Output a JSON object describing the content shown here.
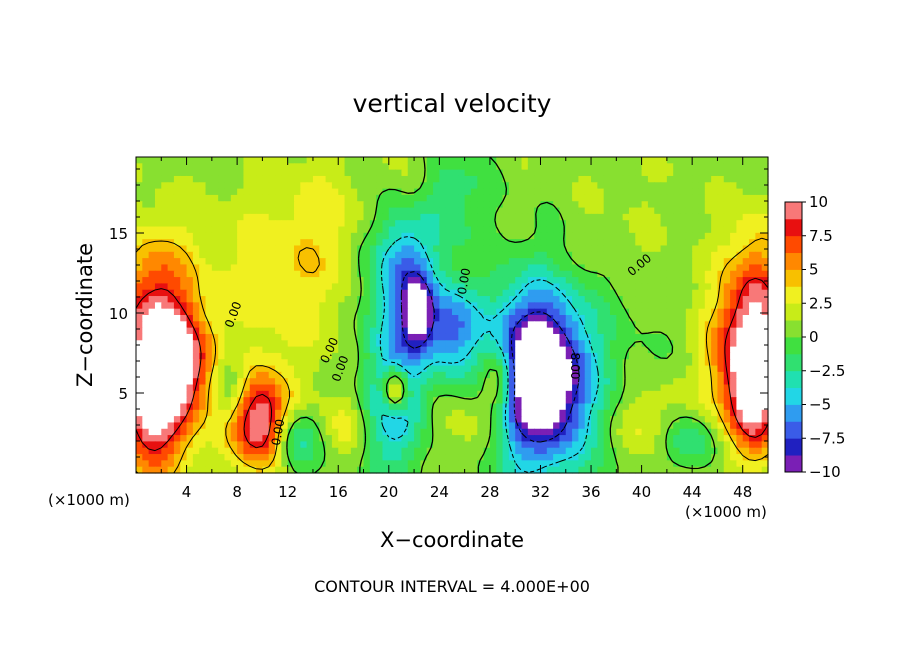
{
  "chart_data": {
    "type": "heatmap",
    "title": "vertical velocity",
    "xlabel": "X−coordinate",
    "ylabel": "Z−coordinate",
    "x_unit": "(×1000 m)",
    "z_unit": "(×1000 m)",
    "footer": "CONTOUR INTERVAL = 4.000E+00",
    "xlim": [
      0,
      50
    ],
    "ylim": [
      0,
      19.75
    ],
    "xticks": [
      4,
      8,
      12,
      16,
      20,
      24,
      28,
      32,
      36,
      40,
      44,
      48
    ],
    "yticks": [
      5,
      10,
      15
    ],
    "colorbar": {
      "ticks": [
        "10",
        "7.5",
        "5",
        "2.5",
        "0",
        "−2.5",
        "−5",
        "−7.5",
        "−10"
      ],
      "vmin": -10,
      "vmax": 10,
      "colors": [
        "#7a1fb5",
        "#2020c0",
        "#3a5ce8",
        "#2f9cf0",
        "#22d6e6",
        "#20e0b0",
        "#30e070",
        "#40e040",
        "#88e030",
        "#c8ec18",
        "#f0f020",
        "#f8c000",
        "#ff8800",
        "#ff4a00",
        "#e81010",
        "#f87878"
      ]
    },
    "contour_labels": [
      "0.00",
      "0.00",
      "0.00",
      "0.00",
      "0.00",
      "0.00",
      "8.00"
    ],
    "features": [
      {
        "x": 1.5,
        "z": 4.5,
        "w": 10.5,
        "sx": 2.2,
        "sz": 3.2
      },
      {
        "x": 1.5,
        "z": 10.0,
        "w": 7.0,
        "sx": 2.2,
        "sz": 3.5
      },
      {
        "x": 4.0,
        "z": 7.0,
        "w": 5.0,
        "sx": 1.6,
        "sz": 2.0
      },
      {
        "x": 9.8,
        "z": 2.8,
        "w": 8.0,
        "sx": 1.6,
        "sz": 2.0
      },
      {
        "x": 9.5,
        "z": 4.5,
        "w": 3.0,
        "sx": 2.0,
        "sz": 2.0
      },
      {
        "x": 7.5,
        "z": 5.5,
        "w": -4.0,
        "sx": 1.0,
        "sz": 1.6
      },
      {
        "x": 12.5,
        "z": 2.0,
        "w": -5.0,
        "sx": 1.2,
        "sz": 1.4
      },
      {
        "x": 11.5,
        "z": 12.0,
        "w": 2.5,
        "sx": 5.0,
        "sz": 4.0
      },
      {
        "x": 20.5,
        "z": 5.0,
        "w": -6.5,
        "sx": 1.8,
        "sz": 3.5
      },
      {
        "x": 20.5,
        "z": 5.2,
        "w": 9.0,
        "sx": 0.7,
        "sz": 1.0
      },
      {
        "x": 21.0,
        "z": 13.0,
        "w": -7.0,
        "sx": 2.2,
        "sz": 3.0
      },
      {
        "x": 22.3,
        "z": 10.0,
        "w": -8.0,
        "sx": 0.8,
        "sz": 1.5
      },
      {
        "x": 24.8,
        "z": 9.0,
        "w": -6.0,
        "sx": 1.5,
        "sz": 1.8
      },
      {
        "x": 22.0,
        "z": 17.5,
        "w": 2.0,
        "sx": 1.0,
        "sz": 2.0
      },
      {
        "x": 28.8,
        "z": 5.8,
        "w": 7.0,
        "sx": 1.1,
        "sz": 1.6
      },
      {
        "x": 31.8,
        "z": 6.0,
        "w": -13.0,
        "sx": 2.4,
        "sz": 3.2
      },
      {
        "x": 32.0,
        "z": 6.0,
        "w": -4.0,
        "sx": 4.5,
        "sz": 6.0
      },
      {
        "x": 26.5,
        "z": 3.0,
        "w": 3.0,
        "sx": 2.5,
        "sz": 2.0
      },
      {
        "x": 40.5,
        "z": 3.0,
        "w": 3.0,
        "sx": 2.0,
        "sz": 1.8
      },
      {
        "x": 43.5,
        "z": 2.0,
        "w": -4.0,
        "sx": 1.5,
        "sz": 1.2
      },
      {
        "x": 49.0,
        "z": 9.0,
        "w": 9.5,
        "sx": 1.8,
        "sz": 4.0
      },
      {
        "x": 49.0,
        "z": 4.5,
        "w": 6.5,
        "sx": 1.5,
        "sz": 2.5
      },
      {
        "x": 46.5,
        "z": 7.0,
        "w": 3.0,
        "sx": 1.5,
        "sz": 3.0
      },
      {
        "x": 16.0,
        "z": 16.0,
        "w": 1.5,
        "sx": 4.0,
        "sz": 3.0
      },
      {
        "x": 36.0,
        "z": 15.0,
        "w": 1.0,
        "sx": 6.0,
        "sz": 4.0
      },
      {
        "x": 25.0,
        "z": 17.5,
        "w": -2.5,
        "sx": 2.0,
        "sz": 2.0
      },
      {
        "x": 16.5,
        "z": 3.0,
        "w": 2.5,
        "sx": 1.2,
        "sz": 1.5
      }
    ]
  }
}
